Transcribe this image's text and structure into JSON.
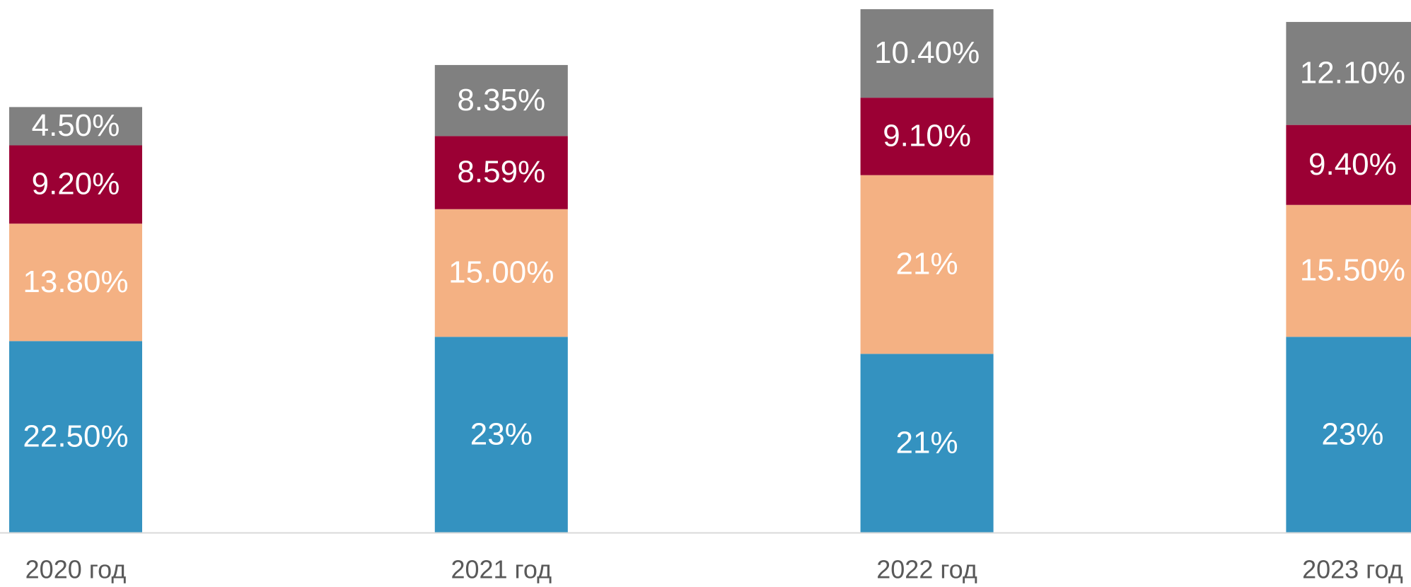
{
  "chart_data": {
    "type": "stacked_bar",
    "categories": [
      "2020 год",
      "2021 год",
      "2022 год",
      "2023 год"
    ],
    "series": [
      {
        "color": "#3492c0",
        "values": [
          22.5,
          23,
          21,
          23
        ],
        "value_labels": [
          "22.50%",
          "23%",
          "21%",
          "23%"
        ]
      },
      {
        "color": "#f4b183",
        "values": [
          13.8,
          15,
          21,
          15.5
        ],
        "value_labels": [
          "13.80%",
          "15.00%",
          "21%",
          "15.50%"
        ]
      },
      {
        "color": "#9b0034",
        "values": [
          9.2,
          8.59,
          9.1,
          9.4
        ],
        "value_labels": [
          "9.20%",
          "8.59%",
          "9.10%",
          "9.40%"
        ]
      },
      {
        "color": "#808080",
        "values": [
          4.5,
          8.35,
          10.4,
          12.1
        ],
        "value_labels": [
          "4.50%",
          "8.35%",
          "10.40%",
          "12.10%"
        ]
      }
    ]
  }
}
